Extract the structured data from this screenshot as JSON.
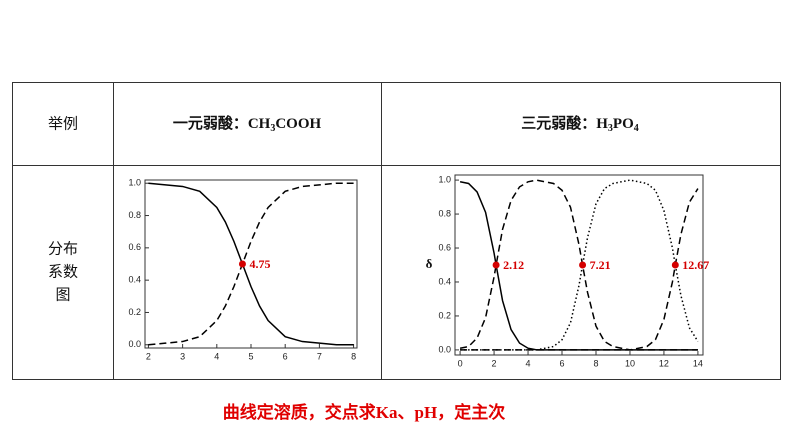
{
  "table": {
    "headers": [
      "举例",
      [
        {
          "text": "一元弱酸：CH"
        },
        {
          "text": "3",
          "sub": true
        },
        {
          "text": "COOH"
        }
      ],
      [
        {
          "text": "三元弱酸：H"
        },
        {
          "text": "3",
          "sub": true
        },
        {
          "text": "PO"
        },
        {
          "text": "4",
          "sub": true
        }
      ]
    ],
    "row_label": [
      "分布",
      "系数",
      "图"
    ]
  },
  "chart_data": [
    {
      "type": "line",
      "x": [
        2,
        2.5,
        3,
        3.5,
        4,
        4.25,
        4.5,
        4.75,
        5,
        5.25,
        5.5,
        6,
        6.5,
        7,
        7.5,
        8
      ],
      "series": [
        {
          "color": "#000000",
          "dash": "solid",
          "values": [
            1.0,
            0.99,
            0.98,
            0.95,
            0.85,
            0.76,
            0.64,
            0.5,
            0.36,
            0.24,
            0.15,
            0.05,
            0.02,
            0.01,
            0.0,
            0.0
          ]
        },
        {
          "color": "#000000",
          "dash": "dashed",
          "values": [
            0.0,
            0.01,
            0.02,
            0.05,
            0.15,
            0.24,
            0.36,
            0.5,
            0.64,
            0.76,
            0.85,
            0.95,
            0.98,
            0.99,
            1.0,
            1.0
          ]
        }
      ],
      "points": [
        {
          "x": 4.75,
          "y": 0.5,
          "color": "#d40000"
        }
      ],
      "xlim": [
        1.9,
        8.1
      ],
      "xticks": [
        2,
        3,
        4,
        5,
        6,
        7,
        8
      ],
      "ylim": [
        -0.02,
        1.02
      ],
      "yticks": [
        {
          "value": 0,
          "label": "0.0"
        },
        0.2,
        0.4,
        0.6,
        0.8,
        {
          "value": 1,
          "label": "1.0"
        }
      ]
    },
    {
      "type": "line",
      "ylabel": "δ",
      "x": [
        0,
        0.5,
        1,
        1.5,
        2,
        2.12,
        2.5,
        3,
        3.5,
        4,
        4.5,
        5,
        5.5,
        6,
        6.5,
        7,
        7.21,
        7.5,
        8,
        8.5,
        9,
        9.5,
        10,
        10.5,
        11,
        11.5,
        12,
        12.5,
        12.67,
        13,
        13.5,
        14
      ],
      "series": [
        {
          "color": "#000000",
          "dash": "solid",
          "values": [
            0.99,
            0.98,
            0.93,
            0.81,
            0.57,
            0.5,
            0.29,
            0.12,
            0.04,
            0.01,
            0,
            0,
            0,
            0,
            0,
            0,
            0,
            0,
            0,
            0,
            0,
            0,
            0,
            0,
            0,
            0,
            0,
            0,
            0,
            0,
            0,
            0
          ]
        },
        {
          "color": "#000000",
          "dash": "dashed",
          "values": [
            0.01,
            0.02,
            0.07,
            0.19,
            0.43,
            0.5,
            0.71,
            0.88,
            0.96,
            0.99,
            1.0,
            0.99,
            0.98,
            0.94,
            0.84,
            0.62,
            0.5,
            0.34,
            0.14,
            0.05,
            0.02,
            0.01,
            0,
            0,
            0,
            0,
            0,
            0,
            0,
            0,
            0,
            0
          ]
        },
        {
          "color": "#000000",
          "dash": "dotted",
          "values": [
            0,
            0,
            0,
            0,
            0,
            0,
            0,
            0,
            0,
            0,
            0,
            0.01,
            0.02,
            0.06,
            0.16,
            0.38,
            0.5,
            0.66,
            0.86,
            0.95,
            0.98,
            0.99,
            1.0,
            0.99,
            0.98,
            0.94,
            0.82,
            0.6,
            0.5,
            0.32,
            0.13,
            0.05
          ]
        },
        {
          "color": "#000000",
          "dash": "dashed",
          "values": [
            0,
            0,
            0,
            0,
            0,
            0,
            0,
            0,
            0,
            0,
            0,
            0,
            0,
            0,
            0,
            0,
            0,
            0,
            0,
            0,
            0,
            0,
            0,
            0.01,
            0.02,
            0.06,
            0.18,
            0.4,
            0.5,
            0.68,
            0.87,
            0.95
          ]
        }
      ],
      "points": [
        {
          "x": 2.12,
          "y": 0.5,
          "color": "#d40000"
        },
        {
          "x": 7.21,
          "y": 0.5,
          "color": "#d40000"
        },
        {
          "x": 12.67,
          "y": 0.5,
          "color": "#d40000"
        }
      ],
      "xlim": [
        -0.3,
        14.3
      ],
      "xticks": [
        0,
        2,
        4,
        6,
        8,
        10,
        12,
        14
      ],
      "ylim": [
        -0.03,
        1.03
      ],
      "yticks": [
        {
          "value": 0,
          "label": "0.0"
        },
        0.2,
        0.4,
        0.6,
        0.8,
        {
          "value": 1,
          "label": "1.0"
        }
      ]
    }
  ],
  "footer": "曲线定溶质，交点求Ka、pH，定主次"
}
